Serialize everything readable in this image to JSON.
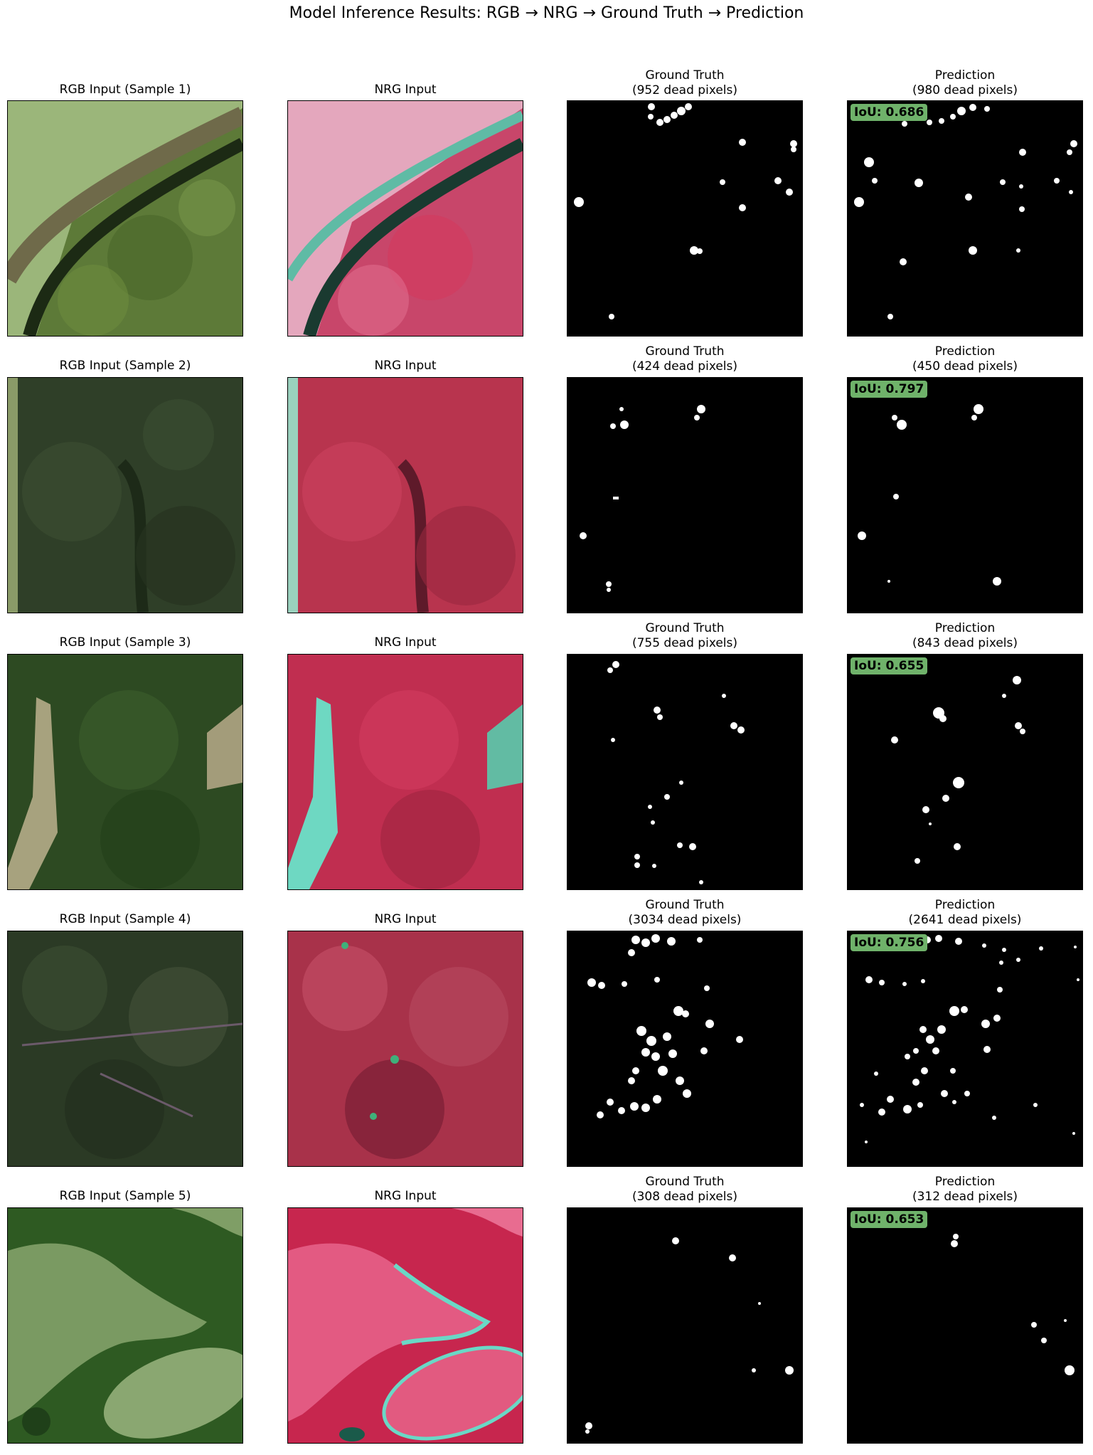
{
  "suptitle": "Model Inference Results: RGB → NRG → Ground Truth → Prediction",
  "samples": [
    {
      "rgb_title": "RGB Input (Sample 1)",
      "nrg_title": "NRG Input",
      "gt_title": "Ground Truth\n(952 dead pixels)",
      "pred_title": "Prediction\n(980 dead pixels)",
      "iou": "IoU: 0.686",
      "rgb_base": "#5d7a38",
      "nrg_base": "#c8466a"
    },
    {
      "rgb_title": "RGB Input (Sample 2)",
      "nrg_title": "NRG Input",
      "gt_title": "Ground Truth\n(424 dead pixels)",
      "pred_title": "Prediction\n(450 dead pixels)",
      "iou": "IoU: 0.797",
      "rgb_base": "#2f3f28",
      "nrg_base": "#b8344e"
    },
    {
      "rgb_title": "RGB Input (Sample 3)",
      "nrg_title": "NRG Input",
      "gt_title": "Ground Truth\n(755 dead pixels)",
      "pred_title": "Prediction\n(843 dead pixels)",
      "iou": "IoU: 0.655",
      "rgb_base": "#2d4a22",
      "nrg_base": "#c02e50"
    },
    {
      "rgb_title": "RGB Input (Sample 4)",
      "nrg_title": "NRG Input",
      "gt_title": "Ground Truth\n(3034 dead pixels)",
      "pred_title": "Prediction\n(2641 dead pixels)",
      "iou": "IoU: 0.756",
      "rgb_base": "#2b3a25",
      "nrg_base": "#a8324a"
    },
    {
      "rgb_title": "RGB Input (Sample 5)",
      "nrg_title": "NRG Input",
      "gt_title": "Ground Truth\n(308 dead pixels)",
      "pred_title": "Prediction\n(312 dead pixels)",
      "iou": "IoU: 0.653",
      "rgb_base": "#7a9a62",
      "nrg_base": "#e35a82"
    }
  ]
}
